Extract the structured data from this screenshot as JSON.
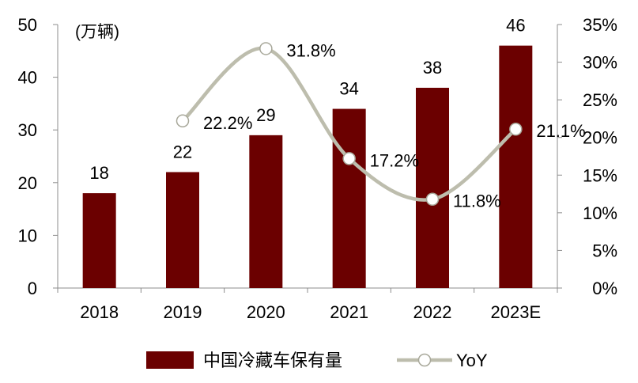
{
  "chart_data": {
    "type": "bar",
    "categories": [
      "2018",
      "2019",
      "2020",
      "2021",
      "2022",
      "2023E"
    ],
    "unit_label": "(万辆)",
    "series": [
      {
        "name": "中国冷藏车保有量",
        "type": "bar",
        "axis": "left",
        "color": "#6b0000",
        "values": [
          18,
          22,
          29,
          34,
          38,
          46
        ],
        "labels": [
          "18",
          "22",
          "29",
          "34",
          "38",
          "46"
        ]
      },
      {
        "name": "YoY",
        "type": "line",
        "axis": "right",
        "color": "#bdbdad",
        "values": [
          null,
          22.2,
          31.8,
          17.2,
          11.8,
          21.1
        ],
        "labels": [
          null,
          "22.2%",
          "31.8%",
          "17.2%",
          "11.8%",
          "21.1%"
        ]
      }
    ],
    "y_left": {
      "range": [
        0,
        50
      ],
      "ticks": [
        "0",
        "10",
        "20",
        "30",
        "40",
        "50"
      ]
    },
    "y_right": {
      "range": [
        0,
        35
      ],
      "ticks": [
        "0%",
        "5%",
        "10%",
        "15%",
        "20%",
        "25%",
        "30%",
        "35%"
      ]
    },
    "grid": false,
    "legend": "bottom"
  }
}
